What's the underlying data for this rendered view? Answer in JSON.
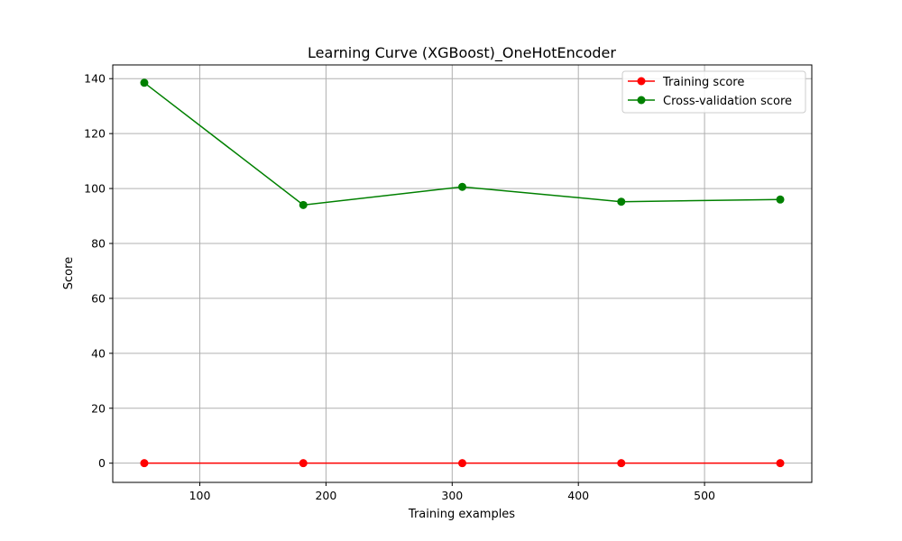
{
  "chart_data": {
    "type": "line",
    "title": "Learning Curve (XGBoost)_OneHotEncoder",
    "xlabel": "Training examples",
    "ylabel": "Score",
    "x": [
      56,
      182,
      308,
      434,
      560
    ],
    "series": [
      {
        "name": "Training score",
        "color": "#ff0000",
        "values": [
          0,
          0,
          0,
          0,
          0
        ]
      },
      {
        "name": "Cross-validation score",
        "color": "#008000",
        "values": [
          138.5,
          94,
          100.6,
          95.2,
          96
        ]
      }
    ],
    "xlim": [
      31,
      585
    ],
    "ylim": [
      -7,
      145
    ],
    "xticks": [
      100,
      200,
      300,
      400,
      500
    ],
    "yticks": [
      0,
      20,
      40,
      60,
      80,
      100,
      120,
      140
    ],
    "grid": true,
    "legend": "top-right"
  }
}
